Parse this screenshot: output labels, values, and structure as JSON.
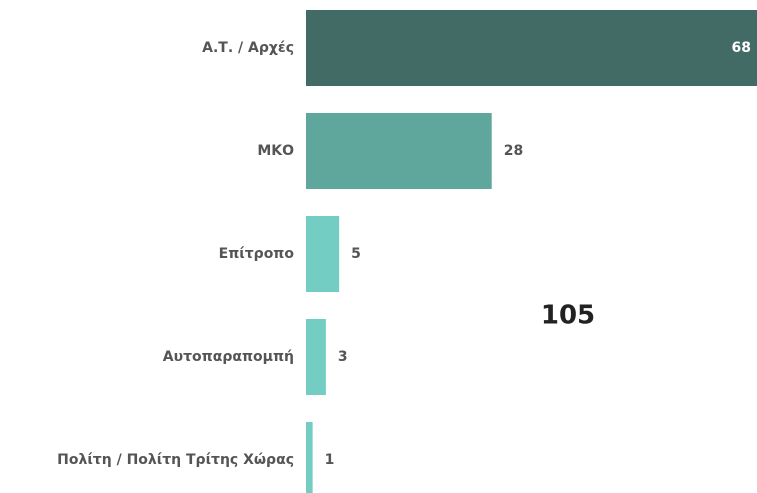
{
  "chart_data": {
    "type": "hbar",
    "categories": [
      "Α.Τ. / Αρχές",
      "ΜΚΟ",
      "Επίτροπο",
      "Αυτοπαραπομπή",
      "Πολίτη / Πολίτη Τρίτης Χώρας"
    ],
    "values": [
      68,
      28,
      5,
      3,
      1
    ],
    "colors": [
      "#426b65",
      "#5fa69d",
      "#74cdc2",
      "#74cdc2",
      "#74cdc2"
    ],
    "xlim": [
      0,
      68
    ],
    "annotation": "105"
  }
}
